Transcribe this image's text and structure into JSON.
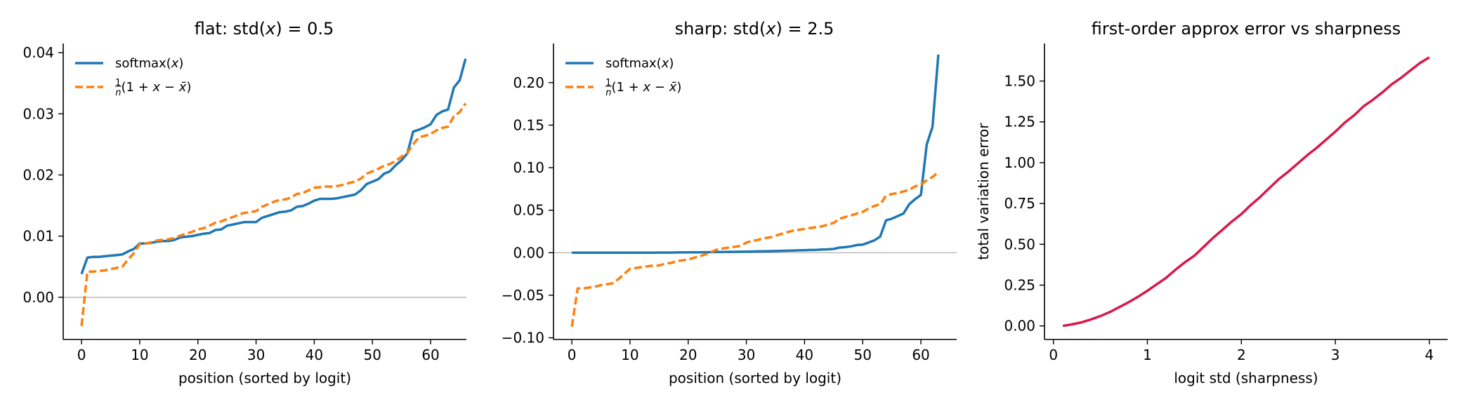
{
  "chart_data": [
    {
      "type": "line",
      "title": "flat: std(x) = 0.5",
      "title_parts": [
        "flat: std(",
        "x",
        ") = 0.5"
      ],
      "xlabel": "position (sorted by logit)",
      "ylabel": "",
      "xlim": [
        -3.15,
        66.15
      ],
      "ylim": [
        -0.0069,
        0.0415
      ],
      "xticks": [
        0,
        10,
        20,
        30,
        40,
        50,
        60
      ],
      "xtick_labels": [
        "0",
        "10",
        "20",
        "30",
        "40",
        "50",
        "60"
      ],
      "yticks": [
        0.0,
        0.01,
        0.02,
        0.03,
        0.04
      ],
      "ytick_labels": [
        "0.00",
        "0.01",
        "0.02",
        "0.03",
        "0.04"
      ],
      "zero_line": true,
      "grid": false,
      "legend": "top-left",
      "series": [
        {
          "name": "softmax(x)",
          "color": "#1f77b4",
          "style": "solid",
          "y": [
            0.0038,
            0.0065,
            0.0066,
            0.0066,
            0.0067,
            0.0068,
            0.0069,
            0.007,
            0.0075,
            0.0079,
            0.0088,
            0.0088,
            0.0089,
            0.0091,
            0.0092,
            0.0092,
            0.0094,
            0.0098,
            0.0099,
            0.01,
            0.0102,
            0.0104,
            0.0105,
            0.011,
            0.0111,
            0.0117,
            0.0119,
            0.0121,
            0.0123,
            0.0123,
            0.0123,
            0.013,
            0.0133,
            0.0136,
            0.0139,
            0.014,
            0.0142,
            0.0148,
            0.0149,
            0.0153,
            0.0158,
            0.0161,
            0.0161,
            0.0161,
            0.0162,
            0.0164,
            0.0166,
            0.0168,
            0.0175,
            0.0185,
            0.0189,
            0.0193,
            0.0202,
            0.0206,
            0.0216,
            0.0224,
            0.0235,
            0.0271,
            0.0274,
            0.0278,
            0.0283,
            0.0298,
            0.0304,
            0.0307,
            0.0343,
            0.0355,
            0.039
          ]
        },
        {
          "name": "1/n(1 + x − x̄)",
          "color": "#ff7f0e",
          "style": "dashed",
          "y": [
            -0.0047,
            0.0042,
            0.0042,
            0.0043,
            0.0044,
            0.0046,
            0.0048,
            0.005,
            0.0062,
            0.0072,
            0.0087,
            0.0088,
            0.009,
            0.0093,
            0.0094,
            0.0095,
            0.0097,
            0.0101,
            0.0104,
            0.0107,
            0.0111,
            0.0113,
            0.0117,
            0.0122,
            0.0124,
            0.0128,
            0.0131,
            0.0135,
            0.0138,
            0.0139,
            0.0141,
            0.0148,
            0.0152,
            0.0156,
            0.0159,
            0.016,
            0.0163,
            0.0169,
            0.017,
            0.0175,
            0.0179,
            0.018,
            0.0181,
            0.0181,
            0.0182,
            0.0184,
            0.0187,
            0.0189,
            0.0194,
            0.0202,
            0.0206,
            0.021,
            0.0215,
            0.0218,
            0.0223,
            0.023,
            0.0236,
            0.025,
            0.0262,
            0.0264,
            0.0267,
            0.0273,
            0.0277,
            0.0279,
            0.0296,
            0.0303,
            0.0317
          ]
        }
      ]
    },
    {
      "type": "line",
      "title": "sharp: std(x) = 2.5",
      "title_parts": [
        "sharp: std(",
        "x",
        ") = 2.5"
      ],
      "xlabel": "position (sorted by logit)",
      "ylabel": "",
      "xlim": [
        -3.15,
        66.15
      ],
      "ylim": [
        -0.102,
        0.246
      ],
      "xticks": [
        0,
        10,
        20,
        30,
        40,
        50,
        60
      ],
      "xtick_labels": [
        "0",
        "10",
        "20",
        "30",
        "40",
        "50",
        "60"
      ],
      "yticks": [
        -0.1,
        -0.05,
        0.0,
        0.05,
        0.1,
        0.15,
        0.2
      ],
      "ytick_labels": [
        "−0.10",
        "−0.05",
        "0.00",
        "0.05",
        "0.10",
        "0.15",
        "0.20"
      ],
      "zero_line": true,
      "grid": false,
      "legend": "top-left",
      "series": [
        {
          "name": "softmax(x)",
          "color": "#1f77b4",
          "style": "solid",
          "y": [
            0.0,
            0.0,
            0.0,
            0.0,
            0.0,
            0.0,
            0.0,
            0.0,
            0.0,
            0.0,
            0.0001,
            0.0001,
            0.0001,
            0.0001,
            0.0001,
            0.0002,
            0.0002,
            0.0002,
            0.0003,
            0.0003,
            0.0004,
            0.0005,
            0.0005,
            0.0006,
            0.0007,
            0.0008,
            0.0009,
            0.001,
            0.0011,
            0.0012,
            0.0013,
            0.0014,
            0.0016,
            0.0017,
            0.0018,
            0.002,
            0.0022,
            0.0024,
            0.0026,
            0.0028,
            0.003,
            0.0032,
            0.0034,
            0.0037,
            0.004,
            0.0045,
            0.006,
            0.0065,
            0.0075,
            0.009,
            0.0095,
            0.012,
            0.0145,
            0.019,
            0.038,
            0.04,
            0.043,
            0.046,
            0.057,
            0.063,
            0.068,
            0.127,
            0.148,
            0.233
          ]
        },
        {
          "name": "1/n(1 + x − x̄)",
          "color": "#ff7f0e",
          "style": "dashed",
          "y": [
            -0.087,
            -0.042,
            -0.042,
            -0.041,
            -0.04,
            -0.038,
            -0.037,
            -0.036,
            -0.031,
            -0.025,
            -0.019,
            -0.018,
            -0.017,
            -0.016,
            -0.015,
            -0.015,
            -0.013,
            -0.012,
            -0.01,
            -0.009,
            -0.008,
            -0.006,
            -0.004,
            -0.002,
            0.001,
            0.004,
            0.005,
            0.006,
            0.007,
            0.008,
            0.012,
            0.014,
            0.015,
            0.017,
            0.018,
            0.02,
            0.022,
            0.024,
            0.026,
            0.027,
            0.028,
            0.029,
            0.03,
            0.031,
            0.033,
            0.035,
            0.04,
            0.042,
            0.044,
            0.046,
            0.048,
            0.052,
            0.055,
            0.057,
            0.067,
            0.069,
            0.07,
            0.072,
            0.074,
            0.078,
            0.08,
            0.085,
            0.089,
            0.095
          ]
        }
      ]
    },
    {
      "type": "line",
      "title": "first-order approx error vs sharpness",
      "xlabel": "logit std (sharpness)",
      "ylabel": "total variation error",
      "xlim": [
        -0.095,
        4.195
      ],
      "ylim": [
        -0.083,
        1.73
      ],
      "xticks": [
        0,
        1,
        2,
        3,
        4
      ],
      "xtick_labels": [
        "0",
        "1",
        "2",
        "3",
        "4"
      ],
      "yticks": [
        0.0,
        0.25,
        0.5,
        0.75,
        1.0,
        1.25,
        1.5
      ],
      "ytick_labels": [
        "0.00",
        "0.25",
        "0.50",
        "0.75",
        "1.00",
        "1.25",
        "1.50"
      ],
      "zero_line": false,
      "grid": false,
      "legend": "none",
      "series": [
        {
          "name": "",
          "color": "#d7194a",
          "style": "solid",
          "x": [
            0.1,
            0.2,
            0.3,
            0.4,
            0.5,
            0.6,
            0.7,
            0.8,
            0.9,
            1.0,
            1.1,
            1.2,
            1.3,
            1.4,
            1.5,
            1.6,
            1.7,
            1.8,
            1.9,
            2.0,
            2.1,
            2.2,
            2.3,
            2.4,
            2.5,
            2.6,
            2.7,
            2.8,
            2.9,
            3.0,
            3.1,
            3.2,
            3.3,
            3.4,
            3.5,
            3.6,
            3.7,
            3.8,
            3.9,
            4.0
          ],
          "y": [
            0.0,
            0.01,
            0.022,
            0.04,
            0.06,
            0.085,
            0.115,
            0.145,
            0.178,
            0.215,
            0.255,
            0.295,
            0.345,
            0.39,
            0.43,
            0.485,
            0.54,
            0.59,
            0.64,
            0.685,
            0.74,
            0.79,
            0.845,
            0.9,
            0.945,
            0.995,
            1.045,
            1.09,
            1.14,
            1.19,
            1.245,
            1.29,
            1.345,
            1.385,
            1.43,
            1.48,
            1.52,
            1.565,
            1.61,
            1.645
          ]
        }
      ]
    }
  ]
}
